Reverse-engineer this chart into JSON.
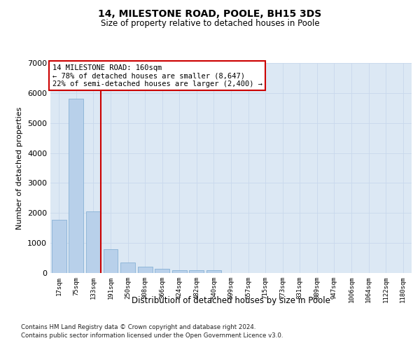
{
  "title": "14, MILESTONE ROAD, POOLE, BH15 3DS",
  "subtitle": "Size of property relative to detached houses in Poole",
  "xlabel": "Distribution of detached houses by size in Poole",
  "ylabel": "Number of detached properties",
  "categories": [
    "17sqm",
    "75sqm",
    "133sqm",
    "191sqm",
    "250sqm",
    "308sqm",
    "366sqm",
    "424sqm",
    "482sqm",
    "540sqm",
    "599sqm",
    "657sqm",
    "715sqm",
    "773sqm",
    "831sqm",
    "889sqm",
    "947sqm",
    "1006sqm",
    "1064sqm",
    "1122sqm",
    "1180sqm"
  ],
  "values": [
    1780,
    5800,
    2060,
    800,
    340,
    200,
    130,
    100,
    90,
    100,
    0,
    0,
    0,
    0,
    0,
    0,
    0,
    0,
    0,
    0,
    0
  ],
  "bar_color": "#b8d0ea",
  "bar_edgecolor": "#7aaad0",
  "red_line_index": 2,
  "red_line_color": "#cc0000",
  "annotation_text": "14 MILESTONE ROAD: 160sqm\n← 78% of detached houses are smaller (8,647)\n22% of semi-detached houses are larger (2,400) →",
  "annotation_box_edgecolor": "#cc0000",
  "ylim": [
    0,
    7000
  ],
  "yticks": [
    0,
    1000,
    2000,
    3000,
    4000,
    5000,
    6000,
    7000
  ],
  "grid_color": "#c8d8ec",
  "bg_color": "#dce8f4",
  "footer_line1": "Contains HM Land Registry data © Crown copyright and database right 2024.",
  "footer_line2": "Contains public sector information licensed under the Open Government Licence v3.0."
}
